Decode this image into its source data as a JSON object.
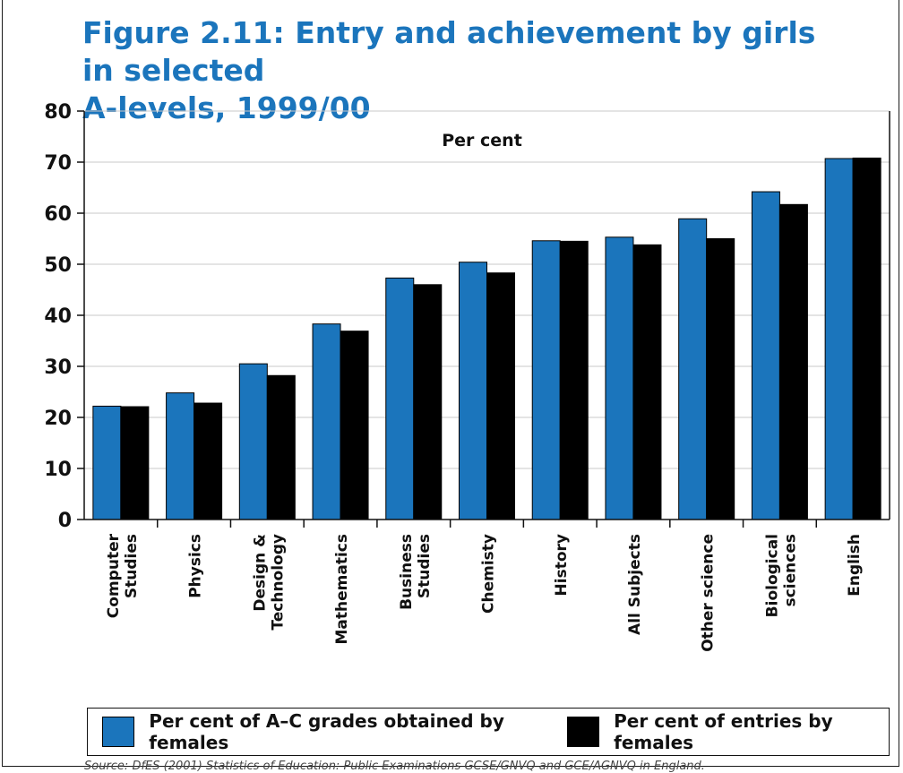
{
  "figure": {
    "title_line1": "Figure 2.11: Entry and achievement by girls in selected",
    "title_line2": "A-levels, 1999/00",
    "source": "Source: DfES (2001) Statistics of Education: Public Examinations GCSE/GNVQ and GCE/AGNVQ in England."
  },
  "chart_data": {
    "type": "bar",
    "title": "",
    "ylabel": "Per cent",
    "xlabel": "",
    "ylim": [
      0,
      80
    ],
    "yticks": [
      0,
      10,
      20,
      30,
      40,
      50,
      60,
      70,
      80
    ],
    "grid": true,
    "legend_position": "bottom",
    "categories": [
      [
        "Computer",
        "Studies"
      ],
      [
        "Physics"
      ],
      [
        "Design &",
        "Technology"
      ],
      [
        "Mathematics"
      ],
      [
        "Business",
        "Studies"
      ],
      [
        "Chemisty"
      ],
      [
        "History"
      ],
      [
        "All Subjects"
      ],
      [
        "Other science"
      ],
      [
        "Biological",
        "sciences"
      ],
      [
        "English"
      ]
    ],
    "series": [
      {
        "name": "Per cent of A–C grades obtained by females",
        "color": "#1b75bc",
        "values": [
          22.2,
          24.8,
          30.5,
          38.3,
          47.3,
          50.4,
          54.6,
          55.3,
          58.9,
          64.2,
          70.7
        ]
      },
      {
        "name": "Per cent of entries by females",
        "color": "#000000",
        "values": [
          22.1,
          22.8,
          28.2,
          36.9,
          46.0,
          48.3,
          54.5,
          53.8,
          55.0,
          61.7,
          70.8
        ]
      }
    ]
  }
}
